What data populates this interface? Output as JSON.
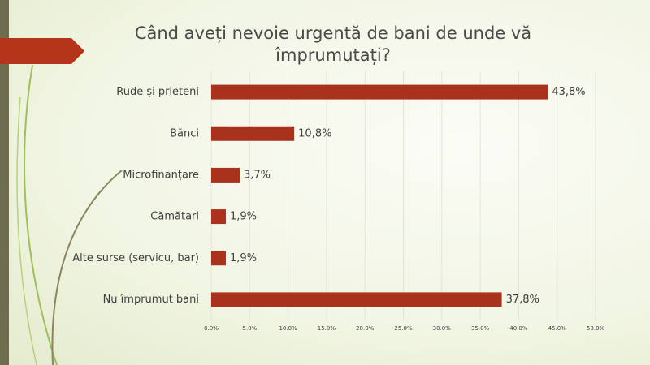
{
  "chart_data": {
    "type": "bar",
    "orientation": "horizontal",
    "title": "Când aveți nevoie urgentă de bani de unde vă împrumutați?",
    "categories": [
      "Rude și prieteni",
      "Bănci",
      "Microfinanțare",
      "Cămătari",
      "Alte surse (servicu, bar)",
      "Nu împrumut bani"
    ],
    "values": [
      43.8,
      10.8,
      3.7,
      1.9,
      1.9,
      37.8
    ],
    "value_labels": [
      "43,8%",
      "10,8%",
      "3,7%",
      "1,9%",
      "1,9%",
      "37,8%"
    ],
    "color": "#a8321b",
    "xlim": [
      0,
      50
    ],
    "xticks": [
      {
        "value": 0,
        "label": "0.0%"
      },
      {
        "value": 5,
        "label": "5.0%"
      },
      {
        "value": 10,
        "label": "10.0%"
      },
      {
        "value": 15,
        "label": "15.0%"
      },
      {
        "value": 20,
        "label": "20.0%"
      },
      {
        "value": 25,
        "label": "25.0%"
      },
      {
        "value": 30,
        "label": "30.0%"
      },
      {
        "value": 35,
        "label": "35.0%"
      },
      {
        "value": 40,
        "label": "40.0%"
      },
      {
        "value": 45,
        "label": "45.0%"
      },
      {
        "value": 50,
        "label": "50.0%"
      }
    ],
    "grid": true
  }
}
